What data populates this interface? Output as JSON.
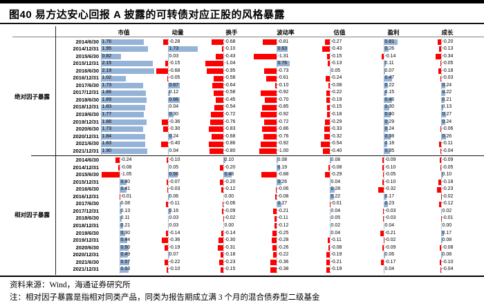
{
  "header": {
    "title": "图40 易方达安心回报 A 披露的可转债对应正股的风格暴露"
  },
  "footer": {
    "source": "资料来源：Wind，海通证券研究所",
    "note": "注：相对因子暴露是指相对同类产品，同类为报告期成立满 3 个月的混合债券型二级基金"
  },
  "chart_data": {
    "type": "bar",
    "title": "图40 易方达安心回报 A 披露的可转债对应正股的风格暴露",
    "orientation": "horizontal-data-bars",
    "columns": [
      "市值",
      "动量",
      "换手",
      "波动率",
      "估值",
      "盈利",
      "成长"
    ],
    "colors": {
      "positive_bar": "#95B3D7",
      "negative_bar": "#FF0000"
    },
    "sections": [
      {
        "label": "绝对因子暴露",
        "rows": [
          {
            "date": "2014/6/30",
            "values": [
              1.76,
              -0.28,
              -0.68,
              -0.81,
              -0.27,
              0.81,
              -0.2
            ]
          },
          {
            "date": "2014/12/31",
            "values": [
              1.95,
              1.73,
              -0.1,
              0.63,
              -0.43,
              0.26,
              -0.13
            ]
          },
          {
            "date": "2015/6/30",
            "values": [
              0.82,
              0.03,
              -0.43,
              -1.31,
              -0.15,
              -0.14,
              -0.34
            ]
          },
          {
            "date": "2015/12/31",
            "values": [
              2.15,
              -0.15,
              -1.04,
              0.76,
              -0.13,
              0.11,
              -0.05
            ]
          },
          {
            "date": "2016/6/30",
            "values": [
              2.19,
              -0.68,
              -0.95,
              -0.73,
              0.05,
              0.07,
              -0.18
            ]
          },
          {
            "date": "2016/12/31",
            "values": [
              1.02,
              -0.05,
              -0.58,
              -0.61,
              -0.24,
              0.47,
              -0.03
            ]
          },
          {
            "date": "2017/6/30",
            "values": [
              1.73,
              0.67,
              -0.64,
              -0.1,
              -0.08,
              0.22,
              0.24
            ]
          },
          {
            "date": "2017/12/31",
            "values": [
              1.86,
              0.12,
              -0.58,
              -0.92,
              -0.22,
              0.15,
              0.22
            ]
          },
          {
            "date": "2018/6/30",
            "values": [
              1.89,
              0.66,
              -0.45,
              -0.7,
              -0.19,
              0.46,
              0.21
            ]
          },
          {
            "date": "2018/12/31",
            "values": [
              1.83,
              0.04,
              -0.54,
              -0.85,
              -0.15,
              0.3,
              0.13
            ]
          },
          {
            "date": "2019/6/30",
            "values": [
              1.77,
              0.3,
              -0.72,
              -0.92,
              -0.18,
              0.4,
              0.27
            ]
          },
          {
            "date": "2019/12/31",
            "values": [
              1.88,
              -0.36,
              -0.76,
              -0.72,
              -0.29,
              0.29,
              0.24
            ]
          },
          {
            "date": "2020/6/30",
            "values": [
              1.73,
              -0.3,
              -0.83,
              -0.86,
              -0.33,
              0.24,
              -0.06
            ]
          },
          {
            "date": "2020/12/31",
            "values": [
              1.84,
              0.24,
              -0.68,
              -0.76,
              -0.32,
              0.38,
              0.26
            ]
          },
          {
            "date": "2021/6/30",
            "values": [
              1.83,
              -0.4,
              -0.86,
              -0.92,
              -0.54,
              0.18,
              -0.11
            ]
          },
          {
            "date": "2021/12/31",
            "values": [
              1.9,
              0.04,
              -0.8,
              -1.0,
              -0.4,
              0.35,
              -0.04
            ]
          }
        ]
      },
      {
        "label": "相对因子暴露",
        "rows": [
          {
            "date": "2014/6/30",
            "values": [
              -0.24,
              -0.1,
              0.1,
              0.08,
              0.08,
              -0.09,
              -0.09
            ]
          },
          {
            "date": "2014/12/31",
            "values": [
              -0.08,
              0.05,
              -0.2,
              0.19,
              -0.08,
              -0.1,
              -0.05
            ]
          },
          {
            "date": "2015/6/30",
            "values": [
              -1.05,
              0.56,
              0.48,
              -0.88,
              -0.29,
              -0.05,
              0.1
            ]
          },
          {
            "date": "2015/12/31",
            "values": [
              0.4,
              -0.07,
              -0.2,
              0.26,
              0.04,
              -0.1,
              -0.18
            ]
          },
          {
            "date": "2016/6/30",
            "values": [
              0.41,
              -0.03,
              -0.12,
              -0.06,
              0.28,
              -0.32,
              -0.23
            ]
          },
          {
            "date": "2016/12/31",
            "values": [
              -0.01,
              0.06,
              0.0,
              -0.08,
              0.22,
              0.17,
              -0.02
            ]
          },
          {
            "date": "2017/6/30",
            "values": [
              0.08,
              -0.11,
              -0.06,
              0.27,
              -0.01,
              0.23,
              -0.12
            ]
          },
          {
            "date": "2017/12/31",
            "values": [
              0.13,
              0.16,
              -0.09,
              -0.21,
              0.04,
              -0.03,
              0.02
            ]
          },
          {
            "date": "2018/6/30",
            "values": [
              0.11,
              0.03,
              -0.02,
              -0.11,
              0.05,
              -0.03,
              -0.01
            ]
          },
          {
            "date": "2018/12/31",
            "values": [
              0.21,
              0.03,
              0.0,
              -0.12,
              0.02,
              0.04,
              0.0
            ]
          },
          {
            "date": "2019/6/30",
            "values": [
              0.3,
              -0.14,
              -0.14,
              -0.25,
              0.04,
              -0.21,
              0.17
            ]
          },
          {
            "date": "2019/12/31",
            "values": [
              0.44,
              -0.36,
              -0.3,
              -0.28,
              -0.11,
              -0.02,
              0.08
            ]
          },
          {
            "date": "2020/6/30",
            "values": [
              0.5,
              -0.19,
              -0.31,
              -0.26,
              -0.08,
              -0.09,
              -0.08
            ]
          },
          {
            "date": "2020/12/31",
            "values": [
              0.49,
              0.07,
              -0.18,
              -0.22,
              -0.19,
              0.06,
              0.08
            ]
          },
          {
            "date": "2021/6/30",
            "values": [
              0.57,
              -0.22,
              -0.23,
              -0.36,
              -0.21,
              -0.17,
              -0.1
            ]
          },
          {
            "date": "2021/12/31",
            "values": [
              0.53,
              -0.1,
              -0.15,
              -0.38,
              -0.19,
              0.04,
              -0.04
            ]
          }
        ]
      }
    ],
    "layout_hints": {
      "value_label_position": "right-of-axis",
      "grid": "dashed-zero-axis-per-column",
      "legend": "none"
    }
  }
}
